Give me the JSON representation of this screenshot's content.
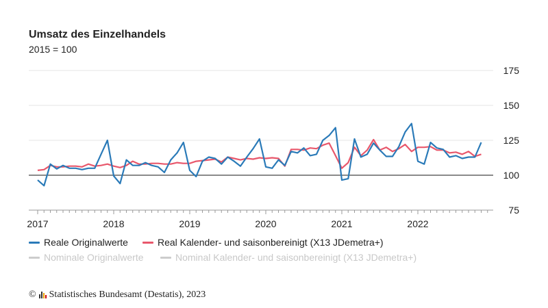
{
  "chart_data": {
    "type": "line",
    "title": "Umsatz des Einzelhandels",
    "subtitle": "2015 = 100",
    "xlabel": "",
    "ylabel": "",
    "ylim": [
      75,
      175
    ],
    "yticks": [
      "75",
      "100",
      "125",
      "150",
      "175"
    ],
    "xticks": [
      "2017",
      "2018",
      "2019",
      "2020",
      "2021",
      "2022"
    ],
    "x_start": "2017-01",
    "x_end": "2022-11",
    "series": [
      {
        "name": "Reale Originalwerte",
        "color": "#2a7ab8",
        "visible": true,
        "values": [
          96.5,
          92.5,
          108,
          104.5,
          107,
          105,
          105,
          104,
          105,
          105,
          115,
          125,
          99.5,
          94,
          111,
          107,
          107,
          109,
          107,
          106,
          102,
          111,
          116,
          123.5,
          103.5,
          99,
          110,
          113,
          112,
          108,
          113,
          110,
          106.5,
          113,
          119,
          126,
          106,
          105,
          111,
          107,
          117,
          116,
          119.5,
          114,
          115,
          125,
          128.5,
          134,
          96.5,
          97.5,
          126,
          113,
          115,
          123,
          118,
          113.5,
          113.5,
          120.5,
          131,
          137,
          110,
          108,
          123.5,
          119.5,
          118.5,
          113,
          114,
          112,
          113,
          113,
          123.5
        ]
      },
      {
        "name": "Real Kalender- und saisonbereinigt (X13 JDemetra+)",
        "color": "#e8576b",
        "visible": true,
        "values": [
          103.5,
          104,
          107,
          106,
          106,
          106.5,
          106.5,
          106,
          108,
          106.5,
          107,
          108,
          106.5,
          105.5,
          107,
          110,
          108,
          108,
          108.5,
          108.5,
          108,
          108,
          109,
          108.5,
          108.5,
          110,
          110.5,
          111,
          111.5,
          109.5,
          113,
          112,
          111,
          112,
          111.5,
          112.5,
          112,
          112.5,
          112,
          106.5,
          118.5,
          118.5,
          118,
          119.5,
          119,
          121.5,
          123,
          114,
          105,
          109,
          120,
          114,
          118,
          125.5,
          118,
          120,
          117,
          119,
          122,
          117,
          120,
          120,
          120.5,
          118,
          118,
          116,
          116.5,
          115,
          117,
          113.5,
          115
        ]
      },
      {
        "name": "Nominale Originalwerte",
        "color": "#cccccc",
        "visible": false,
        "values": []
      },
      {
        "name": "Nominal Kalender- und saisonbereinigt (X13 JDemetra+)",
        "color": "#cccccc",
        "visible": false,
        "values": []
      }
    ]
  },
  "footer": {
    "text": "Statistisches Bundesamt (Destatis), 2023",
    "copyright": "©"
  }
}
